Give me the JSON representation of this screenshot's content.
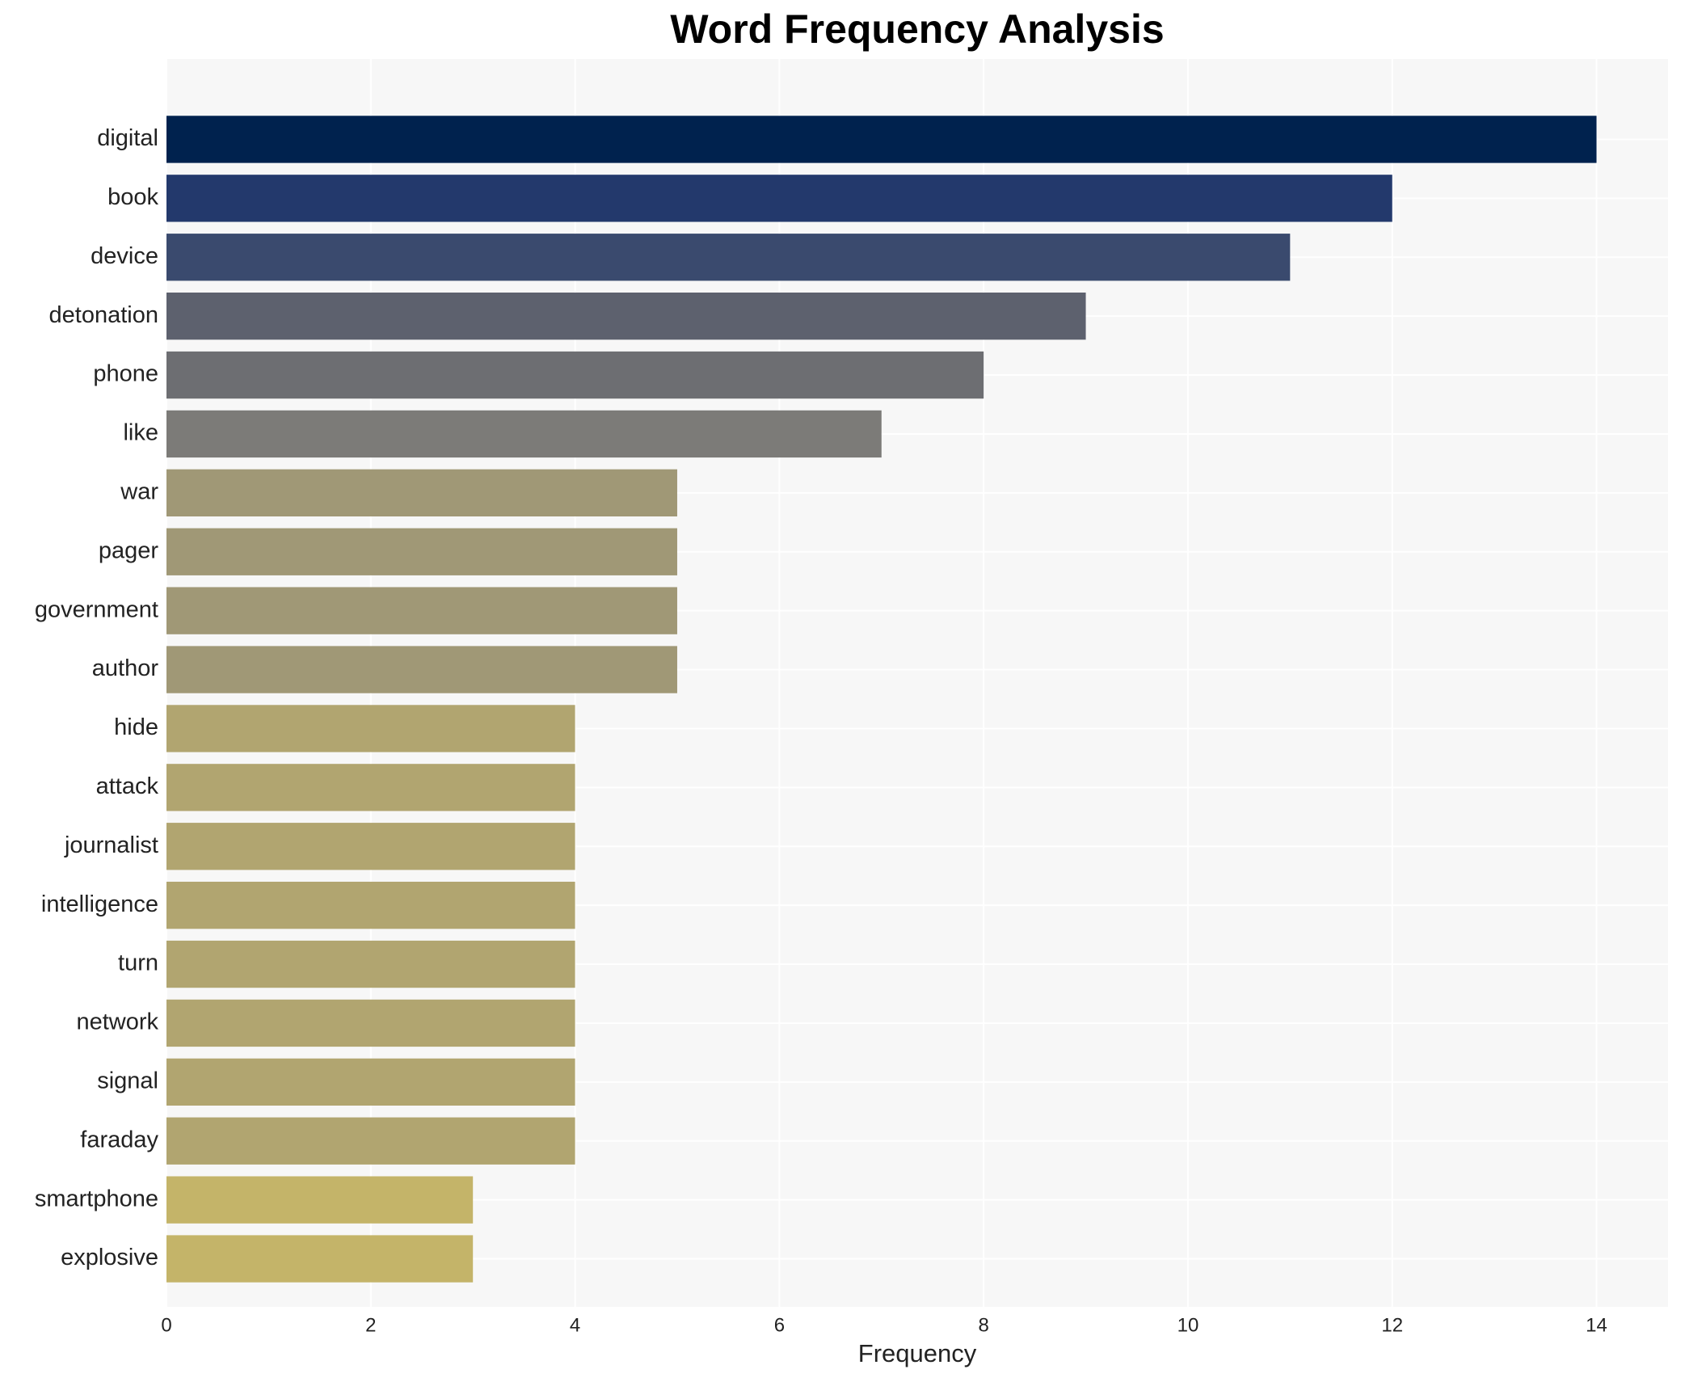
{
  "chart_data": {
    "type": "barh",
    "title": "Word Frequency Analysis",
    "x_label": "Frequency",
    "categories": [
      "digital",
      "book",
      "device",
      "detonation",
      "phone",
      "like",
      "war",
      "pager",
      "government",
      "author",
      "hide",
      "attack",
      "journalist",
      "intelligence",
      "turn",
      "network",
      "signal",
      "faraday",
      "smartphone",
      "explosive"
    ],
    "values": [
      14,
      12,
      11,
      9,
      8,
      7,
      5,
      5,
      5,
      5,
      4,
      4,
      4,
      4,
      4,
      4,
      4,
      4,
      3,
      3
    ],
    "colors": [
      "#00224e",
      "#23396c",
      "#3a4a6e",
      "#5d616e",
      "#6d6e72",
      "#7c7b78",
      "#a09876",
      "#a09876",
      "#a09876",
      "#a09876",
      "#b1a570",
      "#b1a570",
      "#b1a570",
      "#b1a570",
      "#b1a570",
      "#b1a570",
      "#b1a570",
      "#b1a570",
      "#c4b469",
      "#c4b469"
    ],
    "xlim": [
      0,
      14.7
    ],
    "xticks": [
      0,
      2,
      4,
      6,
      8,
      10,
      12,
      14
    ],
    "grid": true
  }
}
